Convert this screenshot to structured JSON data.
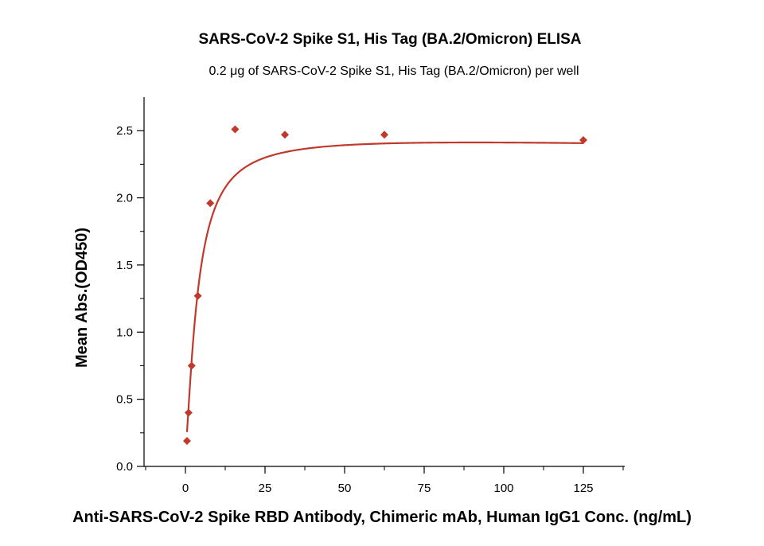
{
  "chart_data": {
    "type": "scatter",
    "title": "SARS-CoV-2 Spike S1, His Tag (BA.2/Omicron) ELISA",
    "subtitle": "0.2 μg of SARS-CoV-2 Spike S1, His Tag (BA.2/Omicron) per well",
    "xlabel": "Anti-SARS-CoV-2 Spike RBD Antibody, Chimeric mAb, Human IgG1 Conc. (ng/mL)",
    "ylabel": "Mean Abs.(OD450)",
    "xlim": [
      -13,
      138
    ],
    "ylim": [
      0,
      2.75
    ],
    "xticks": [
      0,
      25,
      50,
      75,
      100,
      125
    ],
    "xtick_labels": [
      "0",
      "25",
      "50",
      "75",
      "100",
      "125"
    ],
    "yticks": [
      0.0,
      0.5,
      1.0,
      1.5,
      2.0,
      2.5
    ],
    "ytick_labels": [
      "0.0",
      "0.5",
      "1.0",
      "1.5",
      "2.0",
      "2.5"
    ],
    "grid": false,
    "legend": "none",
    "series": [
      {
        "x": [
          0.49,
          0.98,
          1.95,
          3.9,
          7.8,
          15.6,
          31.25,
          62.5,
          125
        ],
        "y": [
          0.19,
          0.4,
          0.75,
          1.27,
          1.96,
          2.51,
          2.47,
          2.47,
          2.43
        ],
        "color": "#c0392b",
        "marker": "diamond",
        "fit": "4PL"
      }
    ]
  }
}
